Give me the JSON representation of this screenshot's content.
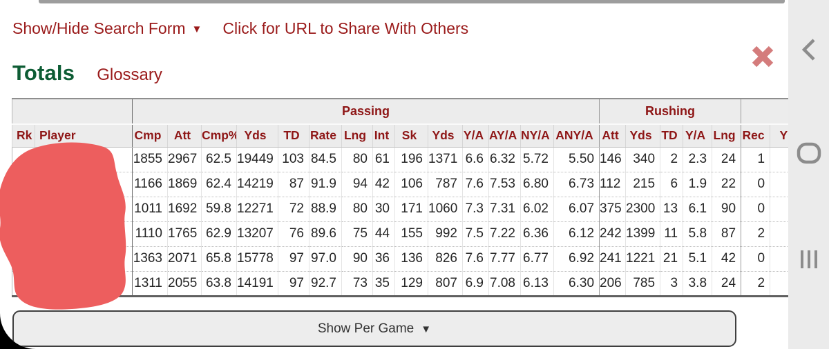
{
  "toolbar": {
    "show_hide_label": "Show/Hide Search Form",
    "caret": "▼",
    "share_label": "Click for URL to Share With Others"
  },
  "heading": {
    "title": "Totals",
    "glossary": "Glossary"
  },
  "close_icon": "x-close-icon",
  "per_game_button": {
    "label": "Show Per Game",
    "caret": "▼"
  },
  "table": {
    "groups": [
      {
        "label": "",
        "span": 2
      },
      {
        "label": "Passing",
        "span": 14
      },
      {
        "label": "Rushing",
        "span": 5
      },
      {
        "label": "",
        "span": 2
      }
    ],
    "columns": [
      "Rk",
      "Player",
      "Cmp",
      "Att",
      "Cmp%",
      "Yds",
      "TD",
      "Rate",
      "Lng",
      "Int",
      "Sk",
      "Yds",
      "Y/A",
      "AY/A",
      "NY/A",
      "ANY/A",
      "Att",
      "Yds",
      "TD",
      "Y/A",
      "Lng",
      "Rec",
      "Y"
    ],
    "rows": [
      [
        "",
        "",
        "1855",
        "2967",
        "62.5",
        "19449",
        "103",
        "84.5",
        "80",
        "61",
        "196",
        "1371",
        "6.6",
        "6.32",
        "5.72",
        "5.50",
        "146",
        "340",
        "2",
        "2.3",
        "24",
        "1",
        ""
      ],
      [
        "",
        "",
        "1166",
        "1869",
        "62.4",
        "14219",
        "87",
        "91.9",
        "94",
        "42",
        "106",
        "787",
        "7.6",
        "7.53",
        "6.80",
        "6.73",
        "112",
        "215",
        "6",
        "1.9",
        "22",
        "0",
        ""
      ],
      [
        "",
        "",
        "1011",
        "1692",
        "59.8",
        "12271",
        "72",
        "88.9",
        "80",
        "30",
        "171",
        "1060",
        "7.3",
        "7.31",
        "6.02",
        "6.07",
        "375",
        "2300",
        "13",
        "6.1",
        "90",
        "0",
        ""
      ],
      [
        "",
        "",
        "1110",
        "1765",
        "62.9",
        "13207",
        "76",
        "89.6",
        "75",
        "44",
        "155",
        "992",
        "7.5",
        "7.22",
        "6.36",
        "6.12",
        "242",
        "1399",
        "11",
        "5.8",
        "87",
        "2",
        ""
      ],
      [
        "",
        "",
        "1363",
        "2071",
        "65.8",
        "15778",
        "97",
        "97.0",
        "90",
        "36",
        "136",
        "826",
        "7.6",
        "7.77",
        "6.77",
        "6.92",
        "241",
        "1221",
        "21",
        "5.1",
        "42",
        "0",
        ""
      ],
      [
        "",
        "",
        "1311",
        "2055",
        "63.8",
        "14191",
        "97",
        "92.7",
        "73",
        "35",
        "129",
        "807",
        "6.9",
        "7.08",
        "6.13",
        "6.30",
        "206",
        "785",
        "3",
        "3.8",
        "24",
        "2",
        ""
      ]
    ],
    "note": "Rk and Player cells are hidden by a red marker scribble in the screenshot"
  },
  "nav": {
    "back": "back",
    "home": "home",
    "recents": "recents"
  },
  "colors": {
    "link_red": "#9a1a1a",
    "header_red": "#8e1616",
    "totals_green": "#0d5c34",
    "header_bg": "#ececec",
    "scribble_red": "#ed5e5e",
    "close_x": "#d47c7c",
    "nav_icon_gray": "#8c8c8c",
    "nav_bg": "#ebebeb"
  }
}
